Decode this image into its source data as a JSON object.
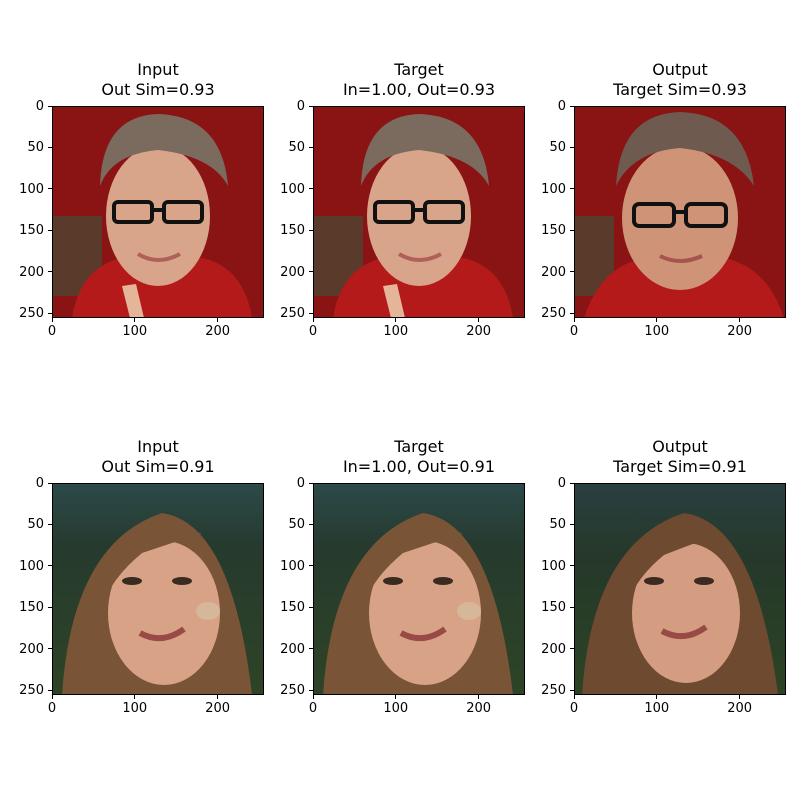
{
  "panels": [
    {
      "title_line1": "Input",
      "title_line2": "Out Sim=0.93",
      "image": "face-woman-glasses"
    },
    {
      "title_line1": "Target",
      "title_line2": "In=1.00, Out=0.93",
      "image": "face-woman-glasses"
    },
    {
      "title_line1": "Output",
      "title_line2": "Target Sim=0.93",
      "image": "face-woman-glasses-output"
    },
    {
      "title_line1": "Input",
      "title_line2": "Out Sim=0.91",
      "image": "face-woman-long-hair"
    },
    {
      "title_line1": "Target",
      "title_line2": "In=1.00, Out=0.91",
      "image": "face-woman-long-hair"
    },
    {
      "title_line1": "Output",
      "title_line2": "Target Sim=0.91",
      "image": "face-woman-long-hair-output"
    }
  ],
  "axes": {
    "y_ticks": [
      "0",
      "50",
      "100",
      "150",
      "200",
      "250"
    ],
    "x_ticks": [
      "0",
      "100",
      "200"
    ]
  },
  "colors": {
    "row1_background": "#8a1414",
    "row2_background": "#2a3a2c"
  }
}
